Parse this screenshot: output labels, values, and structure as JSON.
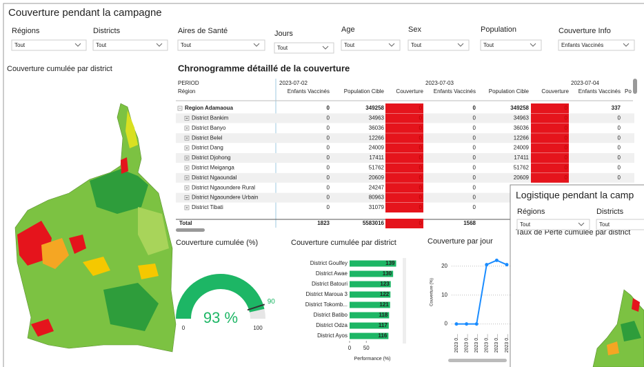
{
  "title": "Couverture pendant la campagne",
  "filters": [
    {
      "label": "Régions",
      "value": "Tout"
    },
    {
      "label": "Districts",
      "value": "Tout"
    },
    {
      "label": "Aires de Santé",
      "value": "Tout"
    },
    {
      "label": "Jours",
      "value": "Tout"
    },
    {
      "label": "Age",
      "value": "Tout"
    },
    {
      "label": "Sex",
      "value": "Tout"
    },
    {
      "label": "Population",
      "value": "Tout"
    },
    {
      "label": "Couverture Info",
      "value": "Enfants Vaccinés"
    }
  ],
  "map": {
    "title": "Couverture cumulée par district"
  },
  "table": {
    "title": "Chronogramme détaillé de la couverture",
    "period_label": "PERIOD",
    "row_label": "Région",
    "periods": [
      "2023-07-02",
      "2023-07-03",
      "2023-07-04"
    ],
    "columns": [
      "Enfants Vaccinés",
      "Population Cible",
      "Couverture"
    ],
    "truncated_column": "Po",
    "rows": [
      {
        "name": "Region Adamaoua",
        "values": [
          0,
          349258,
          0,
          0,
          349258,
          0,
          337
        ]
      },
      {
        "name": "District Bankim",
        "values": [
          0,
          34963,
          0,
          0,
          34963,
          0,
          0
        ]
      },
      {
        "name": "District Banyo",
        "values": [
          0,
          36036,
          0,
          0,
          36036,
          0,
          0
        ]
      },
      {
        "name": "District Belel",
        "values": [
          0,
          12266,
          0,
          0,
          12266,
          0,
          0
        ]
      },
      {
        "name": "District Dang",
        "values": [
          0,
          24009,
          0,
          0,
          24009,
          0,
          0
        ]
      },
      {
        "name": "District Djohong",
        "values": [
          0,
          17411,
          0,
          0,
          17411,
          0,
          0
        ]
      },
      {
        "name": "District Meiganga",
        "values": [
          0,
          51762,
          0,
          0,
          51762,
          0,
          0
        ]
      },
      {
        "name": "District Ngaoundal",
        "values": [
          0,
          20609,
          0,
          0,
          20609,
          0,
          0
        ]
      },
      {
        "name": "District Ngaoundere Rural",
        "values": [
          0,
          24247,
          0,
          0
        ]
      },
      {
        "name": "District Ngaoundere Urbain",
        "values": [
          0,
          80963,
          0,
          0
        ]
      },
      {
        "name": "District Tibati",
        "values": [
          0,
          31079,
          0,
          0
        ]
      }
    ],
    "total": {
      "name": "Total",
      "values": [
        1823,
        5583016,
        0,
        1568
      ]
    }
  },
  "gauge": {
    "title": "Couverture cumulée (%)",
    "value": 93,
    "value_label": "93 %",
    "min": 0,
    "max": 100,
    "target": 90,
    "color": "#1db665"
  },
  "bar_chart": {
    "type": "bar",
    "title": "Couverture cumulée par district",
    "categories": [
      "District Goulfey",
      "District Awae",
      "District Batouri",
      "District Maroua 3",
      "District Tokomb...",
      "District Batibo",
      "District Odza",
      "District Ayos"
    ],
    "values": [
      139,
      130,
      123,
      122,
      121,
      118,
      117,
      116
    ],
    "color": "#1db665",
    "xlim": [
      0,
      140
    ],
    "xticks": [
      0,
      50
    ],
    "xlabel": "Performance (%)"
  },
  "line_chart": {
    "type": "line",
    "title": "Couverture par jour",
    "x": [
      "2023 0...",
      "2023 0...",
      "2023 0...",
      "2023 0...",
      "2023 0...",
      "2023 0..."
    ],
    "values": [
      0,
      0,
      0,
      20.5,
      22,
      20.5
    ],
    "color": "#1a8cff",
    "ylim": [
      -2,
      24
    ],
    "yticks": [
      0,
      10,
      20
    ],
    "ylabel": "Couverture (%)",
    "grid": true
  },
  "logistics": {
    "title": "Logistique pendant la camp",
    "filters": [
      {
        "label": "Régions",
        "value": "Tout"
      },
      {
        "label": "Districts",
        "value": "Tout"
      }
    ],
    "map_title": "Taux de Perte cumulée par district"
  }
}
